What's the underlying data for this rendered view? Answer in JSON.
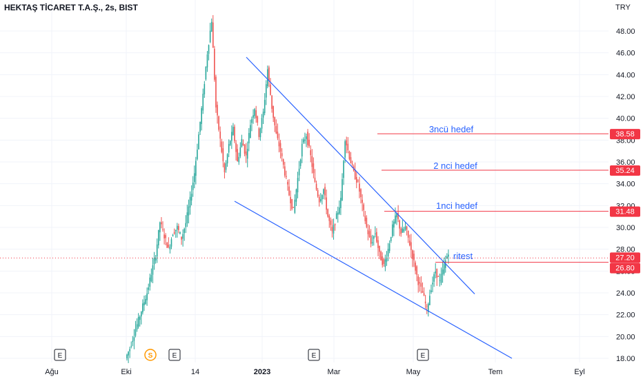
{
  "title": "HEKTAŞ TİCARET T.A.Ş., 2s, BIST",
  "currency": "TRY",
  "colors": {
    "up": "#26a69a",
    "down": "#ef5350",
    "trendline": "#2962ff",
    "target_line": "#f23645",
    "label_text": "#2962ff",
    "grid": "#f0f3fa",
    "axis_text": "#131722",
    "event_badge_border": "#131722",
    "dividend_badge": "#ff9800"
  },
  "y_ticks": [
    "48.00",
    "46.00",
    "44.00",
    "42.00",
    "40.00",
    "38.00",
    "36.00",
    "34.00",
    "32.00",
    "30.00",
    "28.00",
    "26.00",
    "24.00",
    "22.00",
    "20.00",
    "18.00"
  ],
  "x_ticks": [
    "Ağu",
    "Eki",
    "14",
    "2023",
    "Mar",
    "May",
    "Tem",
    "Eyl"
  ],
  "price_badges": [
    {
      "value": "38.58"
    },
    {
      "value": "35.24"
    },
    {
      "value": "31.48"
    },
    {
      "value": "27.20"
    },
    {
      "value": "26.80"
    }
  ],
  "annotations": [
    {
      "text": "3ncü hedef"
    },
    {
      "text": "2 nci hedef"
    },
    {
      "text": "1nci hedef"
    },
    {
      "text": "ritest"
    }
  ],
  "event_markers": [
    {
      "label": "E"
    },
    {
      "label": "S"
    },
    {
      "label": "E"
    },
    {
      "label": "E"
    },
    {
      "label": "E"
    }
  ],
  "chart_data": {
    "type": "candlestick",
    "title": "HEKTAŞ TİCARET T.A.Ş., 2s, BIST",
    "y_unit": "TRY",
    "ylim": [
      18,
      49.5
    ],
    "x_labels": [
      "Ağu",
      "Eki",
      "14",
      "2023",
      "Mar",
      "May",
      "Tem",
      "Eyl"
    ],
    "horizontal_levels": [
      {
        "label": "3ncü hedef",
        "value": 38.58
      },
      {
        "label": "2 nci hedef",
        "value": 35.24
      },
      {
        "label": "1nci hedef",
        "value": 31.48
      },
      {
        "label": "ritest",
        "value": 26.8
      },
      {
        "label": "",
        "value": 27.2
      }
    ],
    "trend_path": [
      [
        18.0,
        18.9
      ],
      [
        19.0,
        20.2
      ],
      [
        20.3,
        21.5
      ],
      [
        21.5,
        22.8
      ],
      [
        22.8,
        24.0
      ],
      [
        24.0,
        25.8
      ],
      [
        25.8,
        27.5
      ],
      [
        27.5,
        30.5
      ],
      [
        30.5,
        29.2
      ],
      [
        29.2,
        28.0
      ],
      [
        28.0,
        29.5
      ],
      [
        29.5,
        30.0
      ],
      [
        30.0,
        29.0
      ],
      [
        29.0,
        30.4
      ],
      [
        30.4,
        32.5
      ],
      [
        32.5,
        35.0
      ],
      [
        35.0,
        38.5
      ],
      [
        38.5,
        42.0
      ],
      [
        42.0,
        46.0
      ],
      [
        46.0,
        49.0
      ],
      [
        49.0,
        41.0
      ],
      [
        41.0,
        38.0
      ],
      [
        38.0,
        35.0
      ],
      [
        35.0,
        37.5
      ],
      [
        37.5,
        39.0
      ],
      [
        39.0,
        36.0
      ],
      [
        36.0,
        38.0
      ],
      [
        38.0,
        36.5
      ],
      [
        36.5,
        39.5
      ],
      [
        39.5,
        41.0
      ],
      [
        41.0,
        38.5
      ],
      [
        38.5,
        40.5
      ],
      [
        40.5,
        44.5
      ],
      [
        44.5,
        41.0
      ],
      [
        41.0,
        38.5
      ],
      [
        38.5,
        37.0
      ],
      [
        37.0,
        35.0
      ],
      [
        35.0,
        33.0
      ],
      [
        33.0,
        31.5
      ],
      [
        31.5,
        34.5
      ],
      [
        34.5,
        37.5
      ],
      [
        37.5,
        38.5
      ],
      [
        38.5,
        36.5
      ],
      [
        36.5,
        34.0
      ],
      [
        34.0,
        32.5
      ],
      [
        32.5,
        33.5
      ],
      [
        33.5,
        31.0
      ],
      [
        31.0,
        29.5
      ],
      [
        29.5,
        31.0
      ],
      [
        31.0,
        32.5
      ],
      [
        32.5,
        38.2
      ],
      [
        38.2,
        36.5
      ],
      [
        36.5,
        35.0
      ],
      [
        35.0,
        34.0
      ],
      [
        34.0,
        32.0
      ],
      [
        32.0,
        30.0
      ],
      [
        30.0,
        28.5
      ],
      [
        28.5,
        29.5
      ],
      [
        29.5,
        27.5
      ],
      [
        27.5,
        26.5
      ],
      [
        26.5,
        28.0
      ],
      [
        28.0,
        30.0
      ],
      [
        30.0,
        31.2
      ],
      [
        31.2,
        29.5
      ],
      [
        29.5,
        30.0
      ],
      [
        30.0,
        28.5
      ],
      [
        28.5,
        26.8
      ],
      [
        26.8,
        25.0
      ],
      [
        25.0,
        24.0
      ],
      [
        24.0,
        22.5
      ],
      [
        22.5,
        24.5
      ],
      [
        24.5,
        26.0
      ],
      [
        26.0,
        25.0
      ],
      [
        25.0,
        26.5
      ],
      [
        26.5,
        27.8
      ]
    ],
    "trendlines": [
      {
        "name": "upper",
        "from": {
          "x": "2022-12-05",
          "y": 45.6
        },
        "to": {
          "x": "2023-06-10",
          "y": 23.9
        }
      },
      {
        "name": "lower",
        "from": {
          "x": "2022-11-28",
          "y": 32.4
        },
        "to": {
          "x": "2023-07-15",
          "y": 18.0
        }
      }
    ]
  }
}
